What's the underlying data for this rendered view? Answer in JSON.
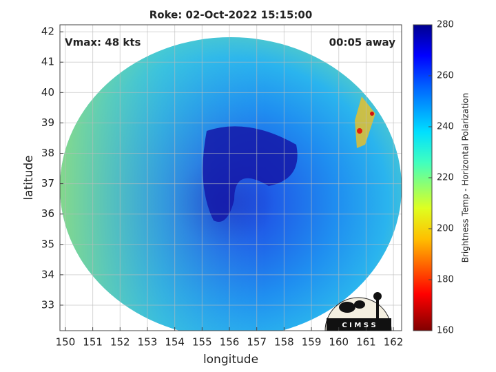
{
  "chart_data": {
    "type": "map",
    "title": "Roke: 02-Oct-2022 15:15:00",
    "annotations": [
      "Vmax: 48 kts",
      "00:05 away"
    ],
    "x_label": "longitude",
    "y_label": "latitude",
    "xlim": [
      149.8,
      162.3
    ],
    "xticks": [
      150,
      151,
      152,
      153,
      154,
      155,
      156,
      157,
      158,
      159,
      160,
      161,
      162
    ],
    "ylim": [
      32.16,
      42.23
    ],
    "yticks": [
      33,
      34,
      35,
      36,
      37,
      38,
      39,
      40,
      41,
      42
    ],
    "grid": true,
    "colorbar": {
      "label": "Brightness Temp - Horizontal Polarization",
      "lim": [
        160,
        280
      ],
      "ticks": [
        160,
        180,
        200,
        220,
        240,
        260,
        280
      ]
    },
    "logo": "C I M S S"
  }
}
